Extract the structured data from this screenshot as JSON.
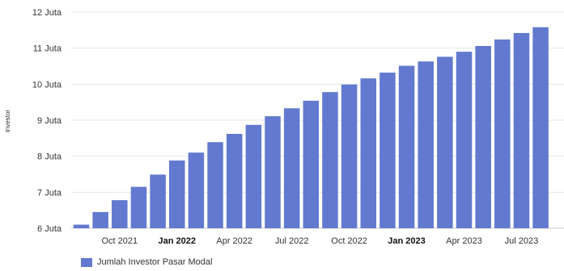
{
  "colors": {
    "bar": "#6279cf",
    "grid": "#e6e6e6",
    "axis": "#cccccc",
    "text": "#333333"
  },
  "chart_data": {
    "type": "bar",
    "title": "",
    "xlabel": "",
    "ylabel": "investor",
    "ylim": [
      6000000,
      12000000
    ],
    "y_ticks": [
      {
        "value": 6000000,
        "label": "6 Juta"
      },
      {
        "value": 7000000,
        "label": "7 Juta"
      },
      {
        "value": 8000000,
        "label": "8 Juta"
      },
      {
        "value": 9000000,
        "label": "9 Juta"
      },
      {
        "value": 10000000,
        "label": "10 Juta"
      },
      {
        "value": 11000000,
        "label": "11 Juta"
      },
      {
        "value": 12000000,
        "label": "12 Juta"
      }
    ],
    "x_ticks": [
      {
        "label": "Oct 2021",
        "at": "2021-10",
        "bold": false
      },
      {
        "label": "Jan 2022",
        "at": "2022-01",
        "bold": true
      },
      {
        "label": "Apr 2022",
        "at": "2022-04",
        "bold": false
      },
      {
        "label": "Jul 2022",
        "at": "2022-07",
        "bold": false
      },
      {
        "label": "Oct 2022",
        "at": "2022-10",
        "bold": false
      },
      {
        "label": "Jan 2023",
        "at": "2023-01",
        "bold": true
      },
      {
        "label": "Apr 2023",
        "at": "2023-04",
        "bold": false
      },
      {
        "label": "Jul 2023",
        "at": "2023-07",
        "bold": false
      }
    ],
    "categories": [
      "2021-08",
      "2021-09",
      "2021-10",
      "2021-11",
      "2021-12",
      "2022-01",
      "2022-02",
      "2022-03",
      "2022-04",
      "2022-05",
      "2022-06",
      "2022-07",
      "2022-08",
      "2022-09",
      "2022-10",
      "2022-11",
      "2022-12",
      "2023-01",
      "2023-02",
      "2023-03",
      "2023-04",
      "2023-05",
      "2023-06",
      "2023-07",
      "2023-08"
    ],
    "series": [
      {
        "name": "Jumlah Investor Pasar Modal",
        "values": [
          6100000,
          6450000,
          6780000,
          7150000,
          7490000,
          7880000,
          8100000,
          8390000,
          8620000,
          8870000,
          9110000,
          9330000,
          9540000,
          9780000,
          9990000,
          10160000,
          10320000,
          10510000,
          10630000,
          10760000,
          10900000,
          11060000,
          11240000,
          11420000,
          11580000
        ]
      }
    ],
    "grid": true,
    "legend": "bottom-left"
  }
}
